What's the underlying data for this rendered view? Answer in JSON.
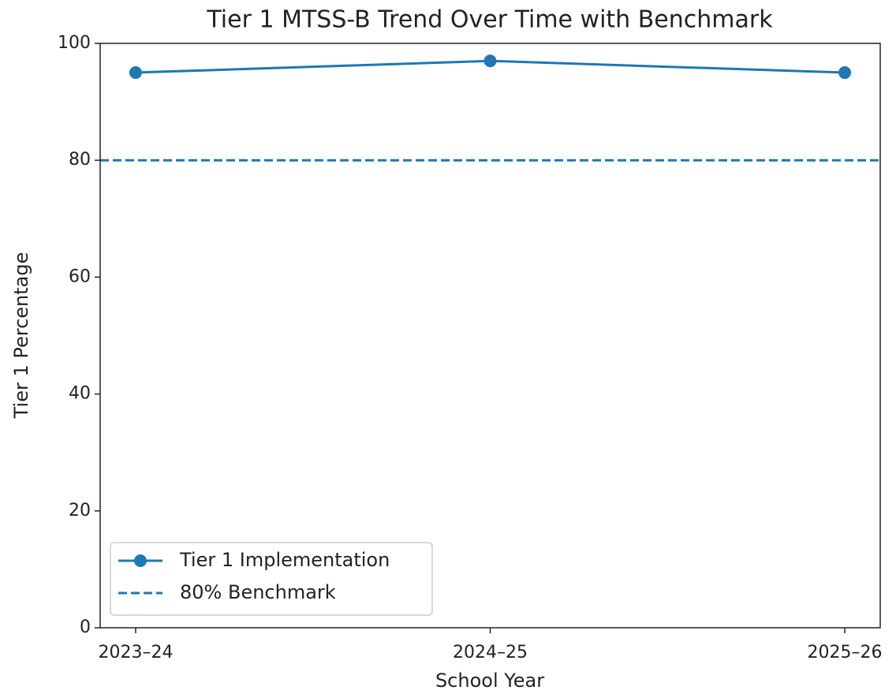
{
  "chart_data": {
    "type": "line",
    "title": "Tier 1 MTSS-B Trend Over Time with Benchmark",
    "x_label": "School Year",
    "y_label": "Tier 1 Percentage",
    "categories": [
      "2023–24",
      "2024–25",
      "2025–26"
    ],
    "series": [
      {
        "name": "Tier 1 Implementation",
        "color": "#1f77b4",
        "values": [
          95,
          97,
          95
        ]
      }
    ],
    "benchmark": {
      "name": "80% Benchmark",
      "value": 80,
      "color": "#1f77b4"
    },
    "ylim": [
      0,
      100
    ],
    "yticks": [
      0,
      20,
      40,
      60,
      80,
      100
    ],
    "legend": "lower left"
  }
}
